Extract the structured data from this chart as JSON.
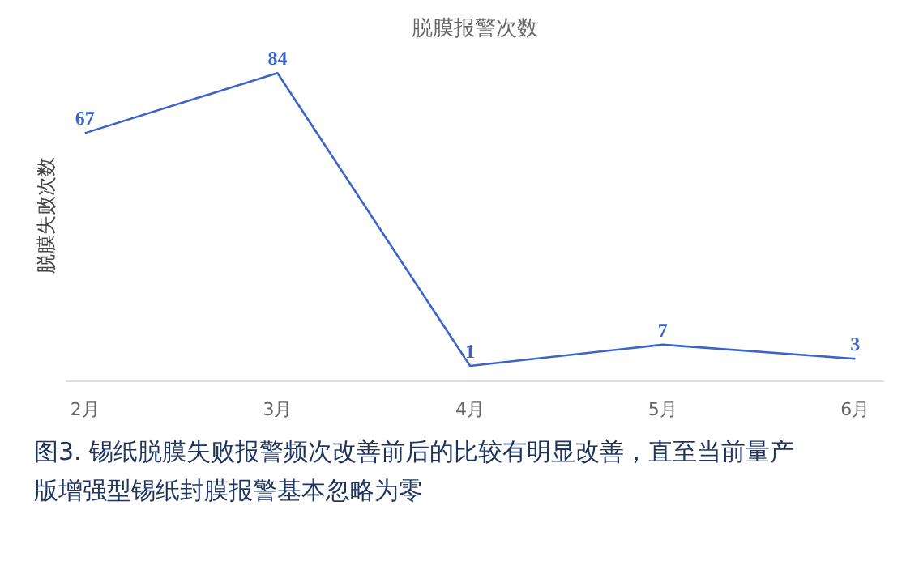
{
  "chart_data": {
    "type": "line",
    "title": "脱膜报警次数",
    "ylabel": "脱膜失败次数",
    "categories": [
      "2月",
      "3月",
      "4月",
      "5月",
      "6月"
    ],
    "series": [
      {
        "color": "#3c64c8",
        "values": [
          67,
          84,
          1,
          7,
          3
        ]
      }
    ],
    "data_labels": true,
    "grid": false,
    "annotations": [
      "图3. 锡纸脱膜失败报警频次改善前后的比较有明显改善，直至当前量产版增强型锡纸封膜报警基本忽略为零"
    ]
  }
}
